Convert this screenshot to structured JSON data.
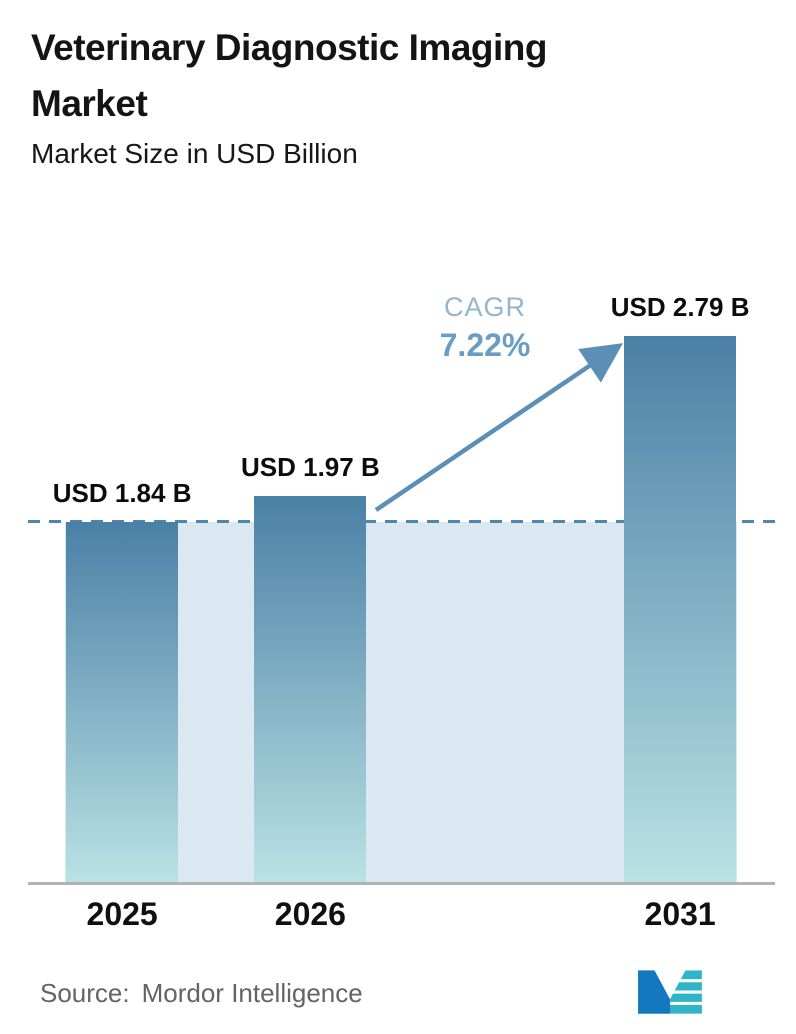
{
  "header": {
    "title_line1": "Veterinary Diagnostic Imaging",
    "title_line2": "Market",
    "subtitle": "Market Size in USD Billion"
  },
  "chart_data": {
    "type": "bar",
    "title": "Veterinary Diagnostic Imaging Market",
    "subtitle": "Market Size in USD Billion",
    "categories": [
      "2025",
      "2026",
      "2031"
    ],
    "values": [
      1.84,
      1.97,
      2.79
    ],
    "value_labels": [
      "USD 1.84 B",
      "USD 1.97 B",
      "USD 2.79 B"
    ],
    "unit": "USD Billion",
    "ylim": [
      0,
      3.33
    ],
    "grid": false,
    "legend": "none",
    "cagr_label": "CAGR",
    "cagr_value": "7.22%",
    "baseline_value": 1.84,
    "bar_color_top": "#4b80a6",
    "bar_color_bottom": "#b9e2e4",
    "band_color": "#dce8f1",
    "dashed_line_color": "#4e87ae",
    "arrow_color": "#5b8fb5",
    "cagr_label_color": "#92b5d0",
    "cagr_value_color": "#6b9dc2",
    "layout": {
      "bar_centers_pct": [
        12.6,
        37.8,
        87.3
      ],
      "bar_width_pct": 15.0,
      "band_left_pct": 4.95,
      "band_width_pct": 90.0
    }
  },
  "footer": {
    "source_label": "Source:",
    "source_value": "Mordor Intelligence",
    "logo_colors": {
      "blue": "#1478be",
      "teal": "#2eb5c6"
    }
  }
}
